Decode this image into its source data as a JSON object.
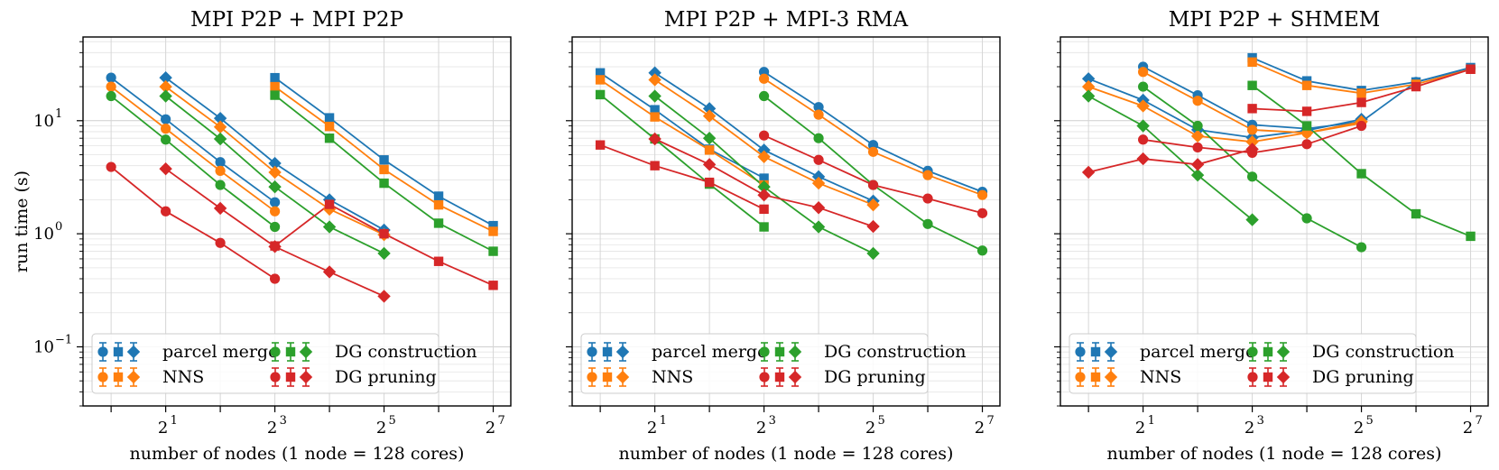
{
  "chart_data": [
    {
      "type": "line",
      "title": "MPI P2P + MPI P2P",
      "xlabel": "number of nodes (1 node = 128 cores)",
      "ylabel": "run time (s)",
      "xscale": "log2",
      "yscale": "log10",
      "xlim": [
        0.7,
        160
      ],
      "ylim": [
        0.03,
        55
      ],
      "xticks": [
        {
          "base": "2",
          "exp": "1"
        },
        {
          "base": "2",
          "exp": "3"
        },
        {
          "base": "2",
          "exp": "5"
        },
        {
          "base": "2",
          "exp": "7"
        }
      ],
      "yticks": [
        {
          "base": "10",
          "exp": "1"
        },
        {
          "base": "10",
          "exp": "0"
        },
        {
          "base": "10",
          "exp": "−1"
        }
      ],
      "grid": true,
      "legend_position": "lower-left",
      "series": [
        {
          "name": "parcel merge",
          "color": "#1f77b4",
          "marker": "circle",
          "x": [
            1,
            2,
            4,
            8
          ],
          "y": [
            24,
            10.3,
            4.3,
            1.9
          ]
        },
        {
          "name": "parcel merge",
          "color": "#1f77b4",
          "marker": "diamond",
          "x": [
            2,
            4,
            8,
            16,
            32
          ],
          "y": [
            24,
            10.5,
            4.2,
            2.0,
            1.08
          ]
        },
        {
          "name": "parcel merge",
          "color": "#1f77b4",
          "marker": "square",
          "x": [
            8,
            16,
            32,
            64,
            128
          ],
          "y": [
            24,
            10.6,
            4.5,
            2.15,
            1.18
          ]
        },
        {
          "name": "NNS",
          "color": "#ff7f0e",
          "marker": "circle",
          "x": [
            1,
            2,
            4,
            8
          ],
          "y": [
            20,
            8.5,
            3.6,
            1.58
          ]
        },
        {
          "name": "NNS",
          "color": "#ff7f0e",
          "marker": "diamond",
          "x": [
            2,
            4,
            8,
            16,
            32
          ],
          "y": [
            20,
            8.8,
            3.5,
            1.65,
            0.98
          ]
        },
        {
          "name": "NNS",
          "color": "#ff7f0e",
          "marker": "square",
          "x": [
            8,
            16,
            32,
            64,
            128
          ],
          "y": [
            20,
            8.9,
            3.7,
            1.8,
            1.05
          ]
        },
        {
          "name": "DG construction",
          "color": "#2ca02c",
          "marker": "circle",
          "x": [
            1,
            2,
            4,
            8
          ],
          "y": [
            16.5,
            6.8,
            2.7,
            1.15
          ]
        },
        {
          "name": "DG construction",
          "color": "#2ca02c",
          "marker": "diamond",
          "x": [
            2,
            4,
            8,
            16,
            32
          ],
          "y": [
            16.5,
            6.9,
            2.6,
            1.15,
            0.67
          ]
        },
        {
          "name": "DG construction",
          "color": "#2ca02c",
          "marker": "square",
          "x": [
            8,
            16,
            32,
            64,
            128
          ],
          "y": [
            16.8,
            7.0,
            2.8,
            1.24,
            0.7
          ]
        },
        {
          "name": "DG pruning",
          "color": "#d62728",
          "marker": "circle",
          "x": [
            1,
            2,
            4,
            8
          ],
          "y": [
            3.9,
            1.58,
            0.83,
            0.4
          ]
        },
        {
          "name": "DG pruning",
          "color": "#d62728",
          "marker": "diamond",
          "x": [
            2,
            4,
            8,
            16,
            32
          ],
          "y": [
            3.75,
            1.68,
            0.77,
            0.46,
            0.28
          ]
        },
        {
          "name": "DG pruning",
          "color": "#d62728",
          "marker": "square",
          "x": [
            8,
            16,
            32,
            64,
            128
          ],
          "y": [
            0.78,
            1.82,
            1.0,
            0.57,
            0.35
          ]
        }
      ]
    },
    {
      "type": "line",
      "title": "MPI P2P + MPI-3 RMA",
      "xlabel": "number of nodes (1 node = 128 cores)",
      "ylabel": "",
      "xscale": "log2",
      "yscale": "log10",
      "xlim": [
        0.7,
        160
      ],
      "ylim": [
        0.03,
        55
      ],
      "xticks": [
        {
          "base": "2",
          "exp": "1"
        },
        {
          "base": "2",
          "exp": "3"
        },
        {
          "base": "2",
          "exp": "5"
        },
        {
          "base": "2",
          "exp": "7"
        }
      ],
      "yticks": [],
      "grid": true,
      "legend_position": "lower-left",
      "series": [
        {
          "name": "parcel merge",
          "color": "#1f77b4",
          "marker": "square",
          "x": [
            1,
            2,
            4,
            8
          ],
          "y": [
            26.5,
            12.5,
            5.6,
            3.1
          ]
        },
        {
          "name": "parcel merge",
          "color": "#1f77b4",
          "marker": "diamond",
          "x": [
            2,
            4,
            8,
            16,
            32
          ],
          "y": [
            26.5,
            12.8,
            5.5,
            3.2,
            1.95
          ]
        },
        {
          "name": "parcel merge",
          "color": "#1f77b4",
          "marker": "circle",
          "x": [
            8,
            16,
            32,
            64,
            128
          ],
          "y": [
            27,
            13.2,
            6.1,
            3.6,
            2.35
          ]
        },
        {
          "name": "NNS",
          "color": "#ff7f0e",
          "marker": "square",
          "x": [
            1,
            2,
            4,
            8
          ],
          "y": [
            23,
            10.8,
            5.5,
            2.7
          ]
        },
        {
          "name": "NNS",
          "color": "#ff7f0e",
          "marker": "diamond",
          "x": [
            2,
            4,
            8,
            16,
            32
          ],
          "y": [
            23,
            11,
            4.8,
            2.8,
            1.8
          ]
        },
        {
          "name": "NNS",
          "color": "#ff7f0e",
          "marker": "circle",
          "x": [
            8,
            16,
            32,
            64,
            128
          ],
          "y": [
            23.5,
            11.3,
            5.3,
            3.3,
            2.2
          ]
        },
        {
          "name": "DG construction",
          "color": "#2ca02c",
          "marker": "square",
          "x": [
            1,
            2,
            4,
            8
          ],
          "y": [
            17,
            6.9,
            2.75,
            1.15
          ]
        },
        {
          "name": "DG construction",
          "color": "#2ca02c",
          "marker": "diamond",
          "x": [
            2,
            4,
            8,
            16,
            32
          ],
          "y": [
            16.5,
            7.0,
            2.6,
            1.15,
            0.67
          ]
        },
        {
          "name": "DG construction",
          "color": "#2ca02c",
          "marker": "circle",
          "x": [
            8,
            16,
            32,
            64,
            128
          ],
          "y": [
            16.5,
            7.0,
            2.7,
            1.22,
            0.71
          ]
        },
        {
          "name": "DG pruning",
          "color": "#d62728",
          "marker": "square",
          "x": [
            1,
            2,
            4,
            8
          ],
          "y": [
            6.1,
            4.0,
            2.85,
            1.65
          ]
        },
        {
          "name": "DG pruning",
          "color": "#d62728",
          "marker": "diamond",
          "x": [
            2,
            4,
            8,
            16,
            32
          ],
          "y": [
            6.9,
            4.1,
            2.2,
            1.7,
            1.16
          ]
        },
        {
          "name": "DG pruning",
          "color": "#d62728",
          "marker": "circle",
          "x": [
            8,
            16,
            32,
            64,
            128
          ],
          "y": [
            7.4,
            4.5,
            2.7,
            2.05,
            1.52
          ]
        }
      ]
    },
    {
      "type": "line",
      "title": "MPI P2P + SHMEM",
      "xlabel": "number of nodes (1 node = 128 cores)",
      "ylabel": "",
      "xscale": "log2",
      "yscale": "log10",
      "xlim": [
        0.7,
        160
      ],
      "ylim": [
        0.03,
        55
      ],
      "xticks": [
        {
          "base": "2",
          "exp": "1"
        },
        {
          "base": "2",
          "exp": "3"
        },
        {
          "base": "2",
          "exp": "5"
        },
        {
          "base": "2",
          "exp": "7"
        }
      ],
      "yticks": [],
      "grid": true,
      "legend_position": "lower-left",
      "series": [
        {
          "name": "parcel merge",
          "color": "#1f77b4",
          "marker": "diamond",
          "x": [
            1,
            2,
            4,
            8,
            16,
            32
          ],
          "y": [
            23.5,
            15.2,
            8.3,
            7.1,
            8.2,
            10.3
          ]
        },
        {
          "name": "parcel merge",
          "color": "#1f77b4",
          "marker": "circle",
          "x": [
            2,
            4,
            8,
            16,
            32,
            64,
            128
          ],
          "y": [
            30,
            16.8,
            9.2,
            8.5,
            9.8,
            22,
            29
          ]
        },
        {
          "name": "parcel merge",
          "color": "#1f77b4",
          "marker": "square",
          "x": [
            8,
            16,
            32,
            64,
            128
          ],
          "y": [
            36,
            22.5,
            18.5,
            22,
            29.5
          ]
        },
        {
          "name": "NNS",
          "color": "#ff7f0e",
          "marker": "diamond",
          "x": [
            1,
            2,
            4,
            8,
            16,
            32
          ],
          "y": [
            20,
            13.5,
            7.3,
            6.5,
            7.8,
            9.8
          ]
        },
        {
          "name": "NNS",
          "color": "#ff7f0e",
          "marker": "circle",
          "x": [
            2,
            4,
            8,
            16,
            32
          ],
          "y": [
            27,
            15,
            8.3,
            7.8,
            9.5
          ]
        },
        {
          "name": "NNS",
          "color": "#ff7f0e",
          "marker": "square",
          "x": [
            8,
            16,
            32,
            64,
            128
          ],
          "y": [
            33,
            20.5,
            17.5,
            21,
            28.5
          ]
        },
        {
          "name": "DG construction",
          "color": "#2ca02c",
          "marker": "diamond",
          "x": [
            1,
            2,
            4,
            8
          ],
          "y": [
            16.5,
            9,
            3.3,
            1.33
          ]
        },
        {
          "name": "DG construction",
          "color": "#2ca02c",
          "marker": "circle",
          "x": [
            2,
            4,
            8,
            16,
            32
          ],
          "y": [
            20,
            9,
            3.2,
            1.37,
            0.76
          ]
        },
        {
          "name": "DG construction",
          "color": "#2ca02c",
          "marker": "square",
          "x": [
            8,
            16,
            32,
            64,
            128
          ],
          "y": [
            20.5,
            9,
            3.4,
            1.5,
            0.95
          ]
        },
        {
          "name": "DG pruning",
          "color": "#d62728",
          "marker": "diamond",
          "x": [
            1,
            2,
            4,
            8
          ],
          "y": [
            3.5,
            4.6,
            4.1,
            5.6
          ]
        },
        {
          "name": "DG pruning",
          "color": "#d62728",
          "marker": "circle",
          "x": [
            2,
            4,
            8,
            16,
            32
          ],
          "y": [
            6.8,
            5.8,
            5.2,
            6.2,
            9.0
          ]
        },
        {
          "name": "DG pruning",
          "color": "#d62728",
          "marker": "square",
          "x": [
            8,
            16,
            32,
            64,
            128
          ],
          "y": [
            12.8,
            12.1,
            14.5,
            20,
            28.5
          ]
        }
      ]
    }
  ],
  "legend": [
    {
      "label": "parcel merge",
      "color": "#1f77b4"
    },
    {
      "label": "NNS",
      "color": "#ff7f0e"
    },
    {
      "label": "DG construction",
      "color": "#2ca02c"
    },
    {
      "label": "DG pruning",
      "color": "#d62728"
    }
  ]
}
